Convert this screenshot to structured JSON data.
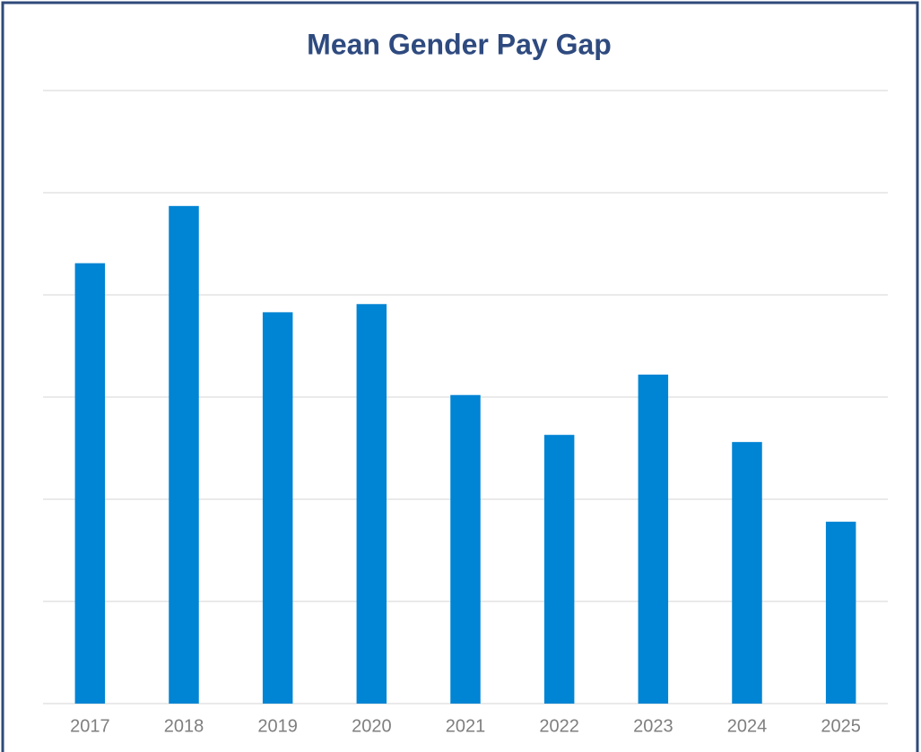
{
  "chart_data": {
    "type": "bar",
    "title": "Mean Gender Pay Gap",
    "categories": [
      "2017",
      "2018",
      "2019",
      "2020",
      "2021",
      "2022",
      "2023",
      "2024",
      "2025"
    ],
    "values": [
      4.31,
      4.87,
      3.83,
      3.91,
      3.02,
      2.63,
      3.22,
      2.56,
      1.78
    ],
    "color": "#0084d4",
    "ylim": [
      0,
      6
    ],
    "yticks": [
      0,
      1,
      2,
      3,
      4,
      5,
      6
    ],
    "grid": true
  }
}
